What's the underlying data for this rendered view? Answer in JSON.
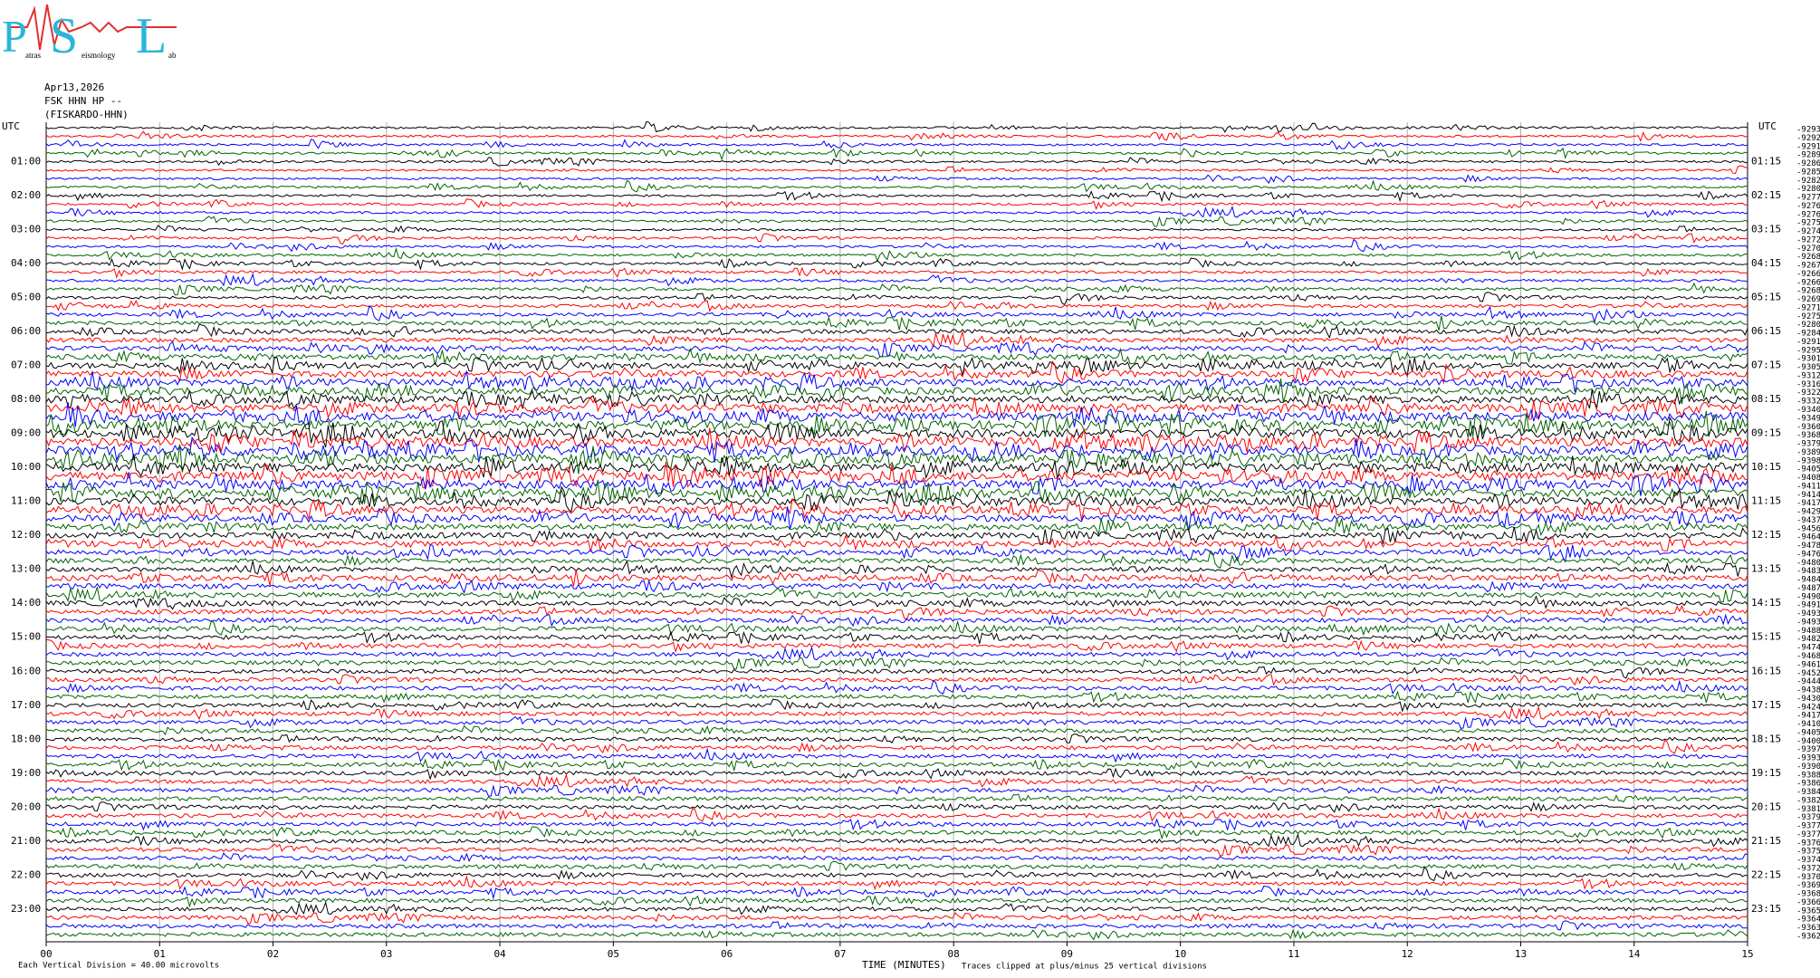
{
  "header": {
    "logo": {
      "p": "P",
      "s": "S",
      "l": "L",
      "p_small": "atras",
      "s_small": "eismology",
      "l_small": "ab"
    },
    "date": "Apr13,2026",
    "station": "FSK HHN HP --",
    "station_name": "(FISKARDO-HHN)"
  },
  "chart_data": {
    "type": "helicorder",
    "left_top_label": "UTC",
    "right_top_label": "UTC",
    "left_hour_labels": [
      "01:00",
      "02:00",
      "03:00",
      "04:00",
      "05:00",
      "06:00",
      "07:00",
      "08:00",
      "09:00",
      "10:00",
      "11:00",
      "12:00",
      "13:00",
      "14:00",
      "15:00",
      "16:00",
      "17:00",
      "18:00",
      "19:00",
      "20:00",
      "21:00",
      "22:00",
      "23:00"
    ],
    "right_hour_labels": [
      "01:15",
      "02:15",
      "03:15",
      "04:15",
      "05:15",
      "06:15",
      "07:15",
      "08:15",
      "09:15",
      "10:15",
      "11:15",
      "12:15",
      "13:15",
      "14:15",
      "15:15",
      "16:15",
      "17:15",
      "18:15",
      "19:15",
      "20:15",
      "21:15",
      "22:15",
      "23:15"
    ],
    "trace_offsets": [
      -9293,
      -9292,
      -9291,
      -9289,
      -9286,
      -9285,
      -9282,
      -9280,
      -9277,
      -9276,
      -9276,
      -9275,
      -9274,
      -9272,
      -9270,
      -9268,
      -9267,
      -9266,
      -9266,
      -9268,
      -9269,
      -9271,
      -9275,
      -9280,
      -9284,
      -9291,
      -9295,
      -9301,
      -9305,
      -9312,
      -9316,
      -9322,
      -9332,
      -9340,
      -9349,
      -9360,
      -9368,
      -9379,
      -9389,
      -9398,
      -9405,
      -9408,
      -9411,
      -9414,
      -9417,
      -9429,
      -9437,
      -9456,
      -9464,
      -9478,
      -9476,
      -9480,
      -9483,
      -9484,
      -9487,
      -9490,
      -9491,
      -9493,
      -9493,
      -9488,
      -9482,
      -9474,
      -9468,
      -9461,
      -9452,
      -9444,
      -9438,
      -9430,
      -9424,
      -9417,
      -9410,
      -9405,
      -9400,
      -9397,
      -9393,
      -9390,
      -9388,
      -9386,
      -9384,
      -9382,
      -9381,
      -9379,
      -9377,
      -9377,
      -9376,
      -9375,
      -9374,
      -9372,
      -9370,
      -9369,
      -9368,
      -9366,
      -9365,
      -9364,
      -9363,
      -9362
    ],
    "trace_colors": [
      "#000000",
      "#ff0000",
      "#0000ff",
      "#006400"
    ],
    "xlabel": "TIME (MINUTES)",
    "xlim": [
      0,
      15
    ],
    "xticks": [
      {
        "value": 0,
        "label": "00"
      },
      {
        "value": 1,
        "label": "01"
      },
      {
        "value": 2,
        "label": "02"
      },
      {
        "value": 3,
        "label": "03"
      },
      {
        "value": 4,
        "label": "04"
      },
      {
        "value": 5,
        "label": "05"
      },
      {
        "value": 6,
        "label": "06"
      },
      {
        "value": 7,
        "label": "07"
      },
      {
        "value": 8,
        "label": "08"
      },
      {
        "value": 9,
        "label": "09"
      },
      10,
      11,
      12,
      13,
      14,
      15
    ],
    "grid": true,
    "scale_note": "Each Vertical Division =   40.00 microvolts",
    "clip_note": "Traces clipped at plus/minus 25 vertical divisions"
  }
}
